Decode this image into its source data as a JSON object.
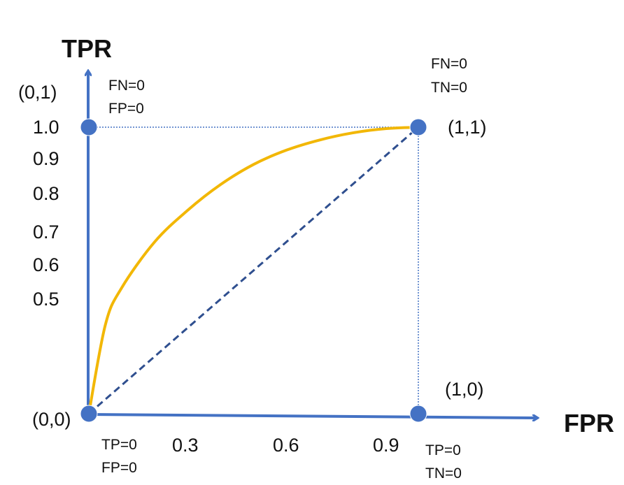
{
  "chart_data": {
    "type": "line",
    "xlabel": "FPR",
    "ylabel": "TPR",
    "xlim": [
      0,
      1
    ],
    "ylim": [
      0,
      1
    ],
    "x_ticks": [
      "0.3",
      "0.6",
      "0.9"
    ],
    "y_ticks": [
      "1.0",
      "0.9",
      "0.8",
      "0.7",
      "0.6",
      "0.5"
    ],
    "series": [
      {
        "style": "solid-curve",
        "color": "#F2B705",
        "x": [
          0,
          0.05,
          0.1,
          0.2,
          0.3,
          0.4,
          0.5,
          0.6,
          0.7,
          0.8,
          0.9,
          1.0
        ],
        "y": [
          0,
          0.31,
          0.44,
          0.6,
          0.71,
          0.8,
          0.87,
          0.92,
          0.955,
          0.98,
          0.995,
          1.0
        ]
      },
      {
        "style": "dashed-diagonal",
        "color": "#2F4F8F",
        "x": [
          0,
          1
        ],
        "y": [
          0,
          1
        ]
      }
    ],
    "points": [
      {
        "x": 0,
        "y": 0,
        "label": "(0,0)",
        "notes": [
          "TP=0",
          "FP=0"
        ]
      },
      {
        "x": 0,
        "y": 1,
        "label": "(0,1)",
        "notes": [
          "FN=0",
          "FP=0"
        ]
      },
      {
        "x": 1,
        "y": 1,
        "label": "(1,1)",
        "notes": [
          "FN=0",
          "TN=0"
        ]
      },
      {
        "x": 1,
        "y": 0,
        "label": "(1,0)",
        "notes": [
          "TP=0",
          "TN=0"
        ]
      }
    ],
    "colors": {
      "axis": "#4472C4",
      "marker": "#4472C4",
      "roc_curve": "#F2B705",
      "diagonal": "#2F4F8F"
    },
    "grid": false
  }
}
